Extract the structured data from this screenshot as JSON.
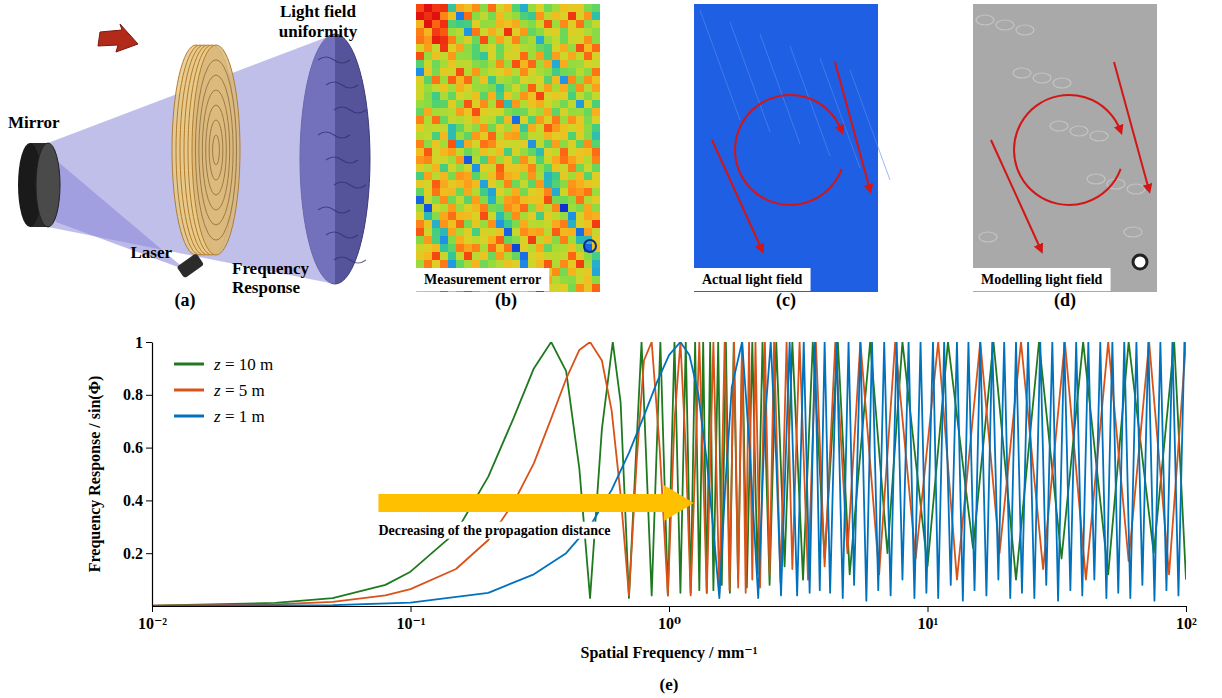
{
  "figure": {
    "panel_a": {
      "panel_label": "(a)",
      "mirror": "Mirror",
      "laser": "Laser",
      "light_field": "Light field uniformity",
      "frequency_response": "Frequency Response"
    },
    "panel_b": {
      "panel_label": "(b)",
      "label": "Measurement error"
    },
    "panel_c": {
      "panel_label": "(c)",
      "label": "Actual light field"
    },
    "panel_d": {
      "panel_label": "(d)",
      "label": "Modelling light field"
    }
  },
  "chart_data": {
    "type": "line",
    "panel_label": "(e)",
    "x_label": "Spatial Frequency / mm⁻¹",
    "y_label": "Frequency Response / sin(Φ)",
    "annotation": "Decreasing of the propagation distance",
    "log": "x",
    "legend": "upper left",
    "xlim": [
      0.01,
      100
    ],
    "ylim": [
      0,
      1
    ],
    "xticks": [
      {
        "value": 0.01,
        "label": "10⁻²"
      },
      {
        "value": 0.1,
        "label": "10⁻¹"
      },
      {
        "value": 1,
        "label": "10⁰"
      },
      {
        "value": 10,
        "label": "10¹"
      },
      {
        "value": 100,
        "label": "10²"
      }
    ],
    "yticks": [
      0.2,
      0.4,
      0.6,
      0.8,
      1
    ],
    "series": [
      {
        "name": "z = 10 m",
        "color": "#1f7a1f",
        "x": [
          0.01,
          0.03,
          0.05,
          0.08,
          0.1,
          0.15,
          0.2,
          0.25,
          0.3,
          0.35,
          0.4,
          0.45,
          0.495,
          0.55,
          0.606,
          0.65,
          0.7,
          0.783,
          0.857,
          0.926,
          0.99,
          1.05,
          1.107,
          1.161,
          1.213,
          1.262,
          1.31,
          1.356,
          1.4,
          1.443,
          1.485,
          1.55,
          1.6,
          1.66,
          1.72,
          1.78,
          1.85,
          1.92,
          2,
          2.1,
          2.2,
          2.3,
          2.45,
          2.6,
          2.8,
          3,
          3.3,
          3.6,
          4,
          4.5,
          5,
          6,
          7,
          8,
          10,
          12,
          15,
          18,
          22,
          27,
          33,
          40,
          50,
          60,
          75,
          90,
          100
        ],
        "values": [
          0.001,
          0.012,
          0.03,
          0.08,
          0.13,
          0.28,
          0.49,
          0.71,
          0.9,
          1,
          0.89,
          0.52,
          0.03,
          0.67,
          1,
          0.77,
          0.03,
          1,
          0.04,
          1,
          0.04,
          1,
          0.05,
          1,
          0.05,
          1,
          0.06,
          1,
          0.05,
          1,
          0.06,
          1,
          0.08,
          1,
          0.05,
          1,
          0.1,
          1,
          0.07,
          1,
          0.12,
          1,
          0.08,
          1,
          0.15,
          1,
          0.1,
          1,
          0.18,
          1,
          0.12,
          1,
          0.2,
          1,
          0.15,
          1,
          0.22,
          1,
          0.1,
          1,
          0.18,
          1,
          0.12,
          1,
          0.2,
          1,
          0.1
        ]
      },
      {
        "name": "z = 5 m",
        "color": "#d95319",
        "x": [
          0.01,
          0.03,
          0.05,
          0.08,
          0.1,
          0.15,
          0.2,
          0.25,
          0.3,
          0.35,
          0.4,
          0.45,
          0.495,
          0.55,
          0.6,
          0.65,
          0.7,
          0.75,
          0.8,
          0.857,
          0.92,
          0.99,
          1.05,
          1.107,
          1.16,
          1.213,
          1.31,
          1.4,
          1.485,
          1.566,
          1.642,
          1.715,
          1.785,
          1.852,
          1.917,
          1.98,
          2.04,
          2.1,
          2.16,
          2.25,
          2.35,
          2.45,
          2.55,
          2.7,
          2.85,
          3,
          3.2,
          3.45,
          3.7,
          4,
          4.4,
          4.9,
          5.5,
          6.5,
          7.5,
          9,
          11,
          13,
          16,
          19,
          23,
          28,
          34,
          41,
          50,
          60,
          72,
          86,
          100
        ],
        "values": [
          0.001,
          0.006,
          0.016,
          0.04,
          0.064,
          0.14,
          0.25,
          0.39,
          0.54,
          0.71,
          0.86,
          0.97,
          1,
          0.93,
          0.74,
          0.42,
          0.04,
          0.55,
          0.93,
          1,
          0.6,
          0.04,
          0.7,
          1,
          0.6,
          0.04,
          1,
          0.05,
          1,
          0.05,
          1,
          0.06,
          1,
          0.07,
          1,
          0.05,
          1,
          0.1,
          1,
          0.07,
          1,
          0.12,
          1,
          0.09,
          1,
          0.14,
          1,
          0.1,
          1,
          0.15,
          1,
          0.2,
          1,
          0.12,
          1,
          0.18,
          1,
          0.1,
          1,
          0.2,
          1,
          0.14,
          1,
          0.1,
          1,
          0.17,
          1,
          0.12,
          1
        ]
      },
      {
        "name": "z = 1 m",
        "color": "#0072bd",
        "x": [
          0.01,
          0.05,
          0.1,
          0.2,
          0.3,
          0.4,
          0.5,
          0.6,
          0.7,
          0.8,
          0.9,
          1,
          1.107,
          1.2,
          1.3,
          1.4,
          1.5,
          1.566,
          1.65,
          1.75,
          1.917,
          2.05,
          2.214,
          2.35,
          2.475,
          2.6,
          2.712,
          2.929,
          3.131,
          3.321,
          3.5,
          3.67,
          3.83,
          4,
          4.2,
          4.45,
          4.7,
          4.95,
          5.2,
          5.5,
          5.8,
          6.1,
          6.45,
          6.8,
          7.2,
          7.6,
          8,
          8.45,
          8.9,
          9.4,
          9.9,
          10.5,
          11,
          11.6,
          12.3,
          13,
          13.7,
          14.4,
          15.2,
          16,
          16.9,
          17.8,
          18.8,
          19.8,
          20.9,
          22,
          23.2,
          24.5,
          25.9,
          27.3,
          28.8,
          30.4,
          32,
          33.8,
          35.7,
          37.6,
          39.7,
          41.9,
          44.2,
          46.6,
          49.2,
          51.9,
          54.7,
          57.7,
          60.9,
          64.3,
          67.8,
          71.5,
          75.5,
          79.6,
          84,
          88.6,
          93.5,
          98.6
        ],
        "values": [
          0.0004,
          0.003,
          0.013,
          0.05,
          0.12,
          0.2,
          0.31,
          0.44,
          0.58,
          0.72,
          0.85,
          0.95,
          1,
          0.95,
          0.8,
          0.55,
          0.24,
          0.03,
          0.45,
          0.83,
          1,
          0.6,
          0.03,
          0.7,
          1,
          0.55,
          0.04,
          1,
          0.04,
          1,
          0.05,
          1,
          0.06,
          1,
          0.05,
          1,
          0.03,
          1,
          0.08,
          1,
          0.02,
          1,
          0.06,
          1,
          0.04,
          1,
          0.1,
          1,
          0.03,
          1,
          0.05,
          1,
          0.03,
          1,
          0.08,
          1,
          0.02,
          1,
          0.06,
          1,
          0.04,
          1,
          0.1,
          1,
          0.03,
          1,
          0.05,
          1,
          0.03,
          1,
          0.08,
          1,
          0.02,
          1,
          0.06,
          1,
          0.04,
          1,
          0.1,
          1,
          0.03,
          1,
          0.05,
          1,
          0.03,
          1,
          0.08,
          1,
          0.02,
          1,
          0.06,
          1,
          0.04,
          1
        ]
      }
    ]
  }
}
